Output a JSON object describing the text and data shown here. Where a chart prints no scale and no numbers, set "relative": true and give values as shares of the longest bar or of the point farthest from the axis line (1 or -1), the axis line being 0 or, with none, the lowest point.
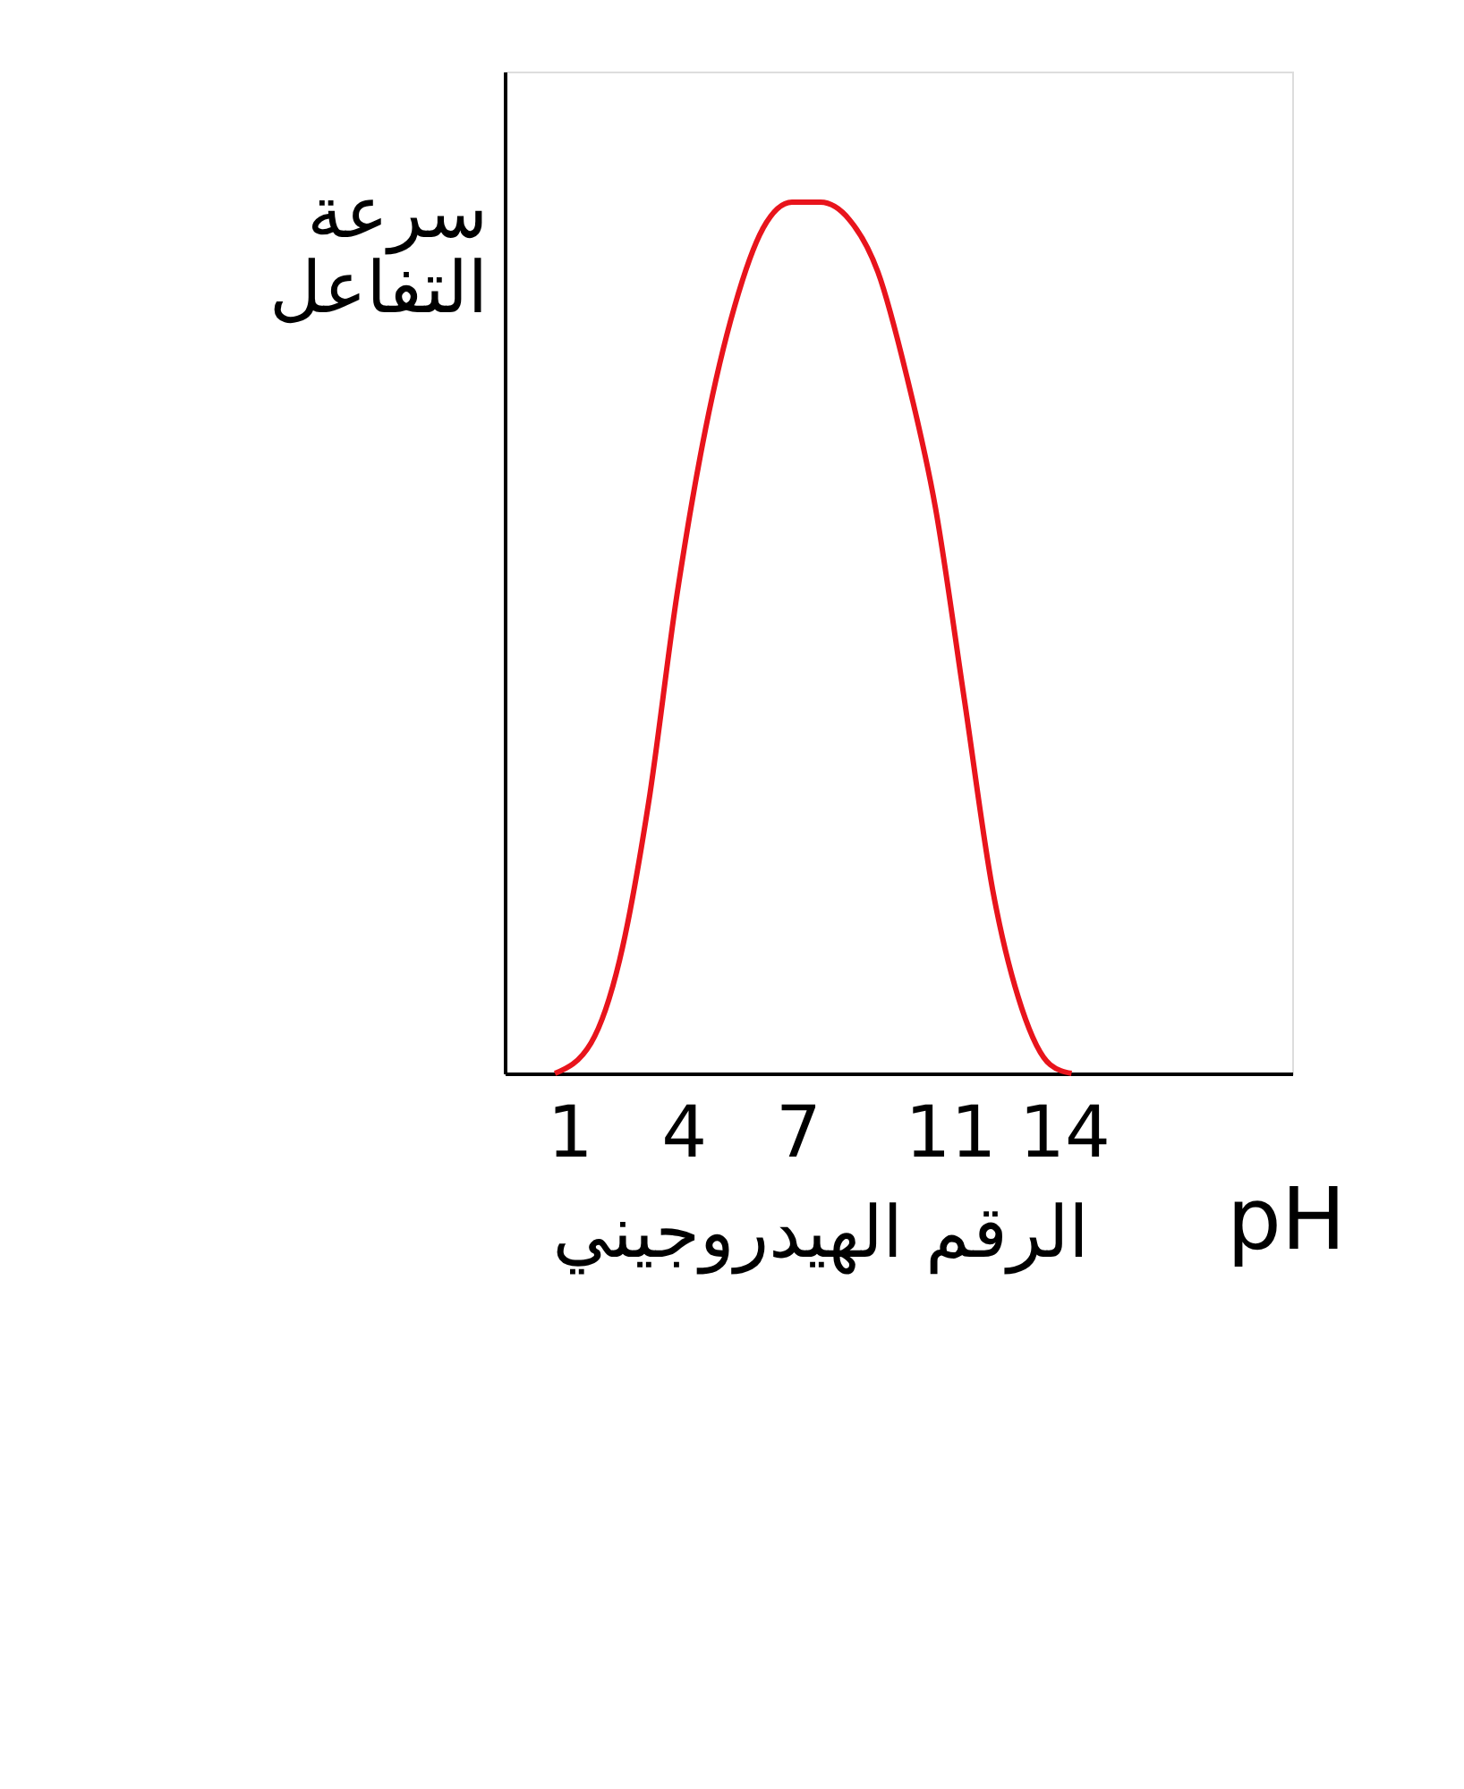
{
  "chart_data": {
    "type": "line",
    "relative": true,
    "xlabel": "الرقم الهيدروجيني",
    "ylabel": "سرعة التفاعل",
    "annotations": [
      "pH"
    ],
    "xlim": [
      -0.7,
      20
    ],
    "xticks": [
      1,
      4,
      7,
      11,
      14
    ],
    "grid": false,
    "marker": "none",
    "x": [
      0.62,
      1.57,
      2.32,
      3.08,
      3.83,
      4.58,
      5.34,
      6.09,
      6.85,
      7.6,
      8.36,
      9.11,
      9.87,
      10.62,
      11.38,
      12.13,
      12.89,
      13.64,
      14.2
    ],
    "series": [
      {
        "color": "#e8141c",
        "values": [
          0,
          0.035,
          0.13,
          0.31,
          0.55,
          0.74,
          0.88,
          0.97,
          1,
          1,
          0.98,
          0.92,
          0.8,
          0.65,
          0.43,
          0.21,
          0.075,
          0.01,
          0
        ]
      }
    ]
  }
}
